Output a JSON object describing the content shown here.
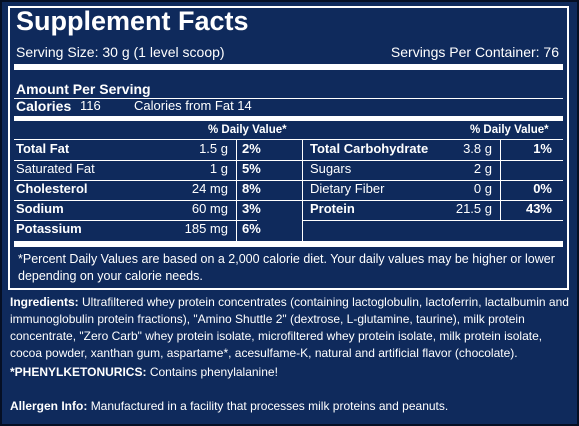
{
  "title": "Supplement Facts",
  "serving_size": "Serving Size: 30 g (1 level scoop)",
  "servings_per_container": "Servings Per Container: 76",
  "amount_per_serving": "Amount Per Serving",
  "calories": {
    "label": "Calories",
    "value": "116",
    "from_fat": "Calories from Fat 14"
  },
  "dv_header": "% Daily Value*",
  "left_nutrients": [
    {
      "name": "Total Fat",
      "amount": "1.5 g",
      "dv": "2%",
      "bold": true
    },
    {
      "name": "Saturated Fat",
      "amount": "1 g",
      "dv": "5%",
      "bold": false
    },
    {
      "name": "Cholesterol",
      "amount": "24 mg",
      "dv": "8%",
      "bold": true
    },
    {
      "name": "Sodium",
      "amount": "60 mg",
      "dv": "3%",
      "bold": true
    },
    {
      "name": "Potassium",
      "amount": "185 mg",
      "dv": "6%",
      "bold": true
    }
  ],
  "right_nutrients": [
    {
      "name": "Total Carbohydrate",
      "amount": "3.8 g",
      "dv": "1%",
      "bold": true
    },
    {
      "name": "Sugars",
      "amount": "2 g",
      "dv": "",
      "bold": false
    },
    {
      "name": "Dietary Fiber",
      "amount": "0 g",
      "dv": "0%",
      "bold": false
    },
    {
      "name": "Protein",
      "amount": "21.5 g",
      "dv": "43%",
      "bold": true
    }
  ],
  "footnote": "*Percent Daily Values are based on a 2,000 calorie diet. Your daily values may be higher or lower depending on your calorie needs.",
  "ingredients": {
    "label": "Ingredients:",
    "text": "Ultrafiltered whey protein concentrates (containing lactoglobulin, lactoferrin, lactalbumin and immunoglobulin protein fractions), \"Amino Shuttle 2\" (dextrose, L-glutamine, taurine), milk protein concentrate, \"Zero Carb\" whey protein isolate, microfiltered whey protein isolate, milk protein isolate, cocoa powder, xanthan gum, aspartame*, acesulfame-K, natural and artificial flavor (chocolate)."
  },
  "phenylketonurics": {
    "label": "*PHENYLKETONURICS:",
    "text": "Contains phenylalanine!"
  },
  "allergen": {
    "label": "Allergen Info:",
    "text": "Manufactured in a facility that processes milk proteins and peanuts."
  },
  "colors": {
    "background": "#0f2a5c",
    "text": "#ffffff",
    "border": "#000000"
  }
}
